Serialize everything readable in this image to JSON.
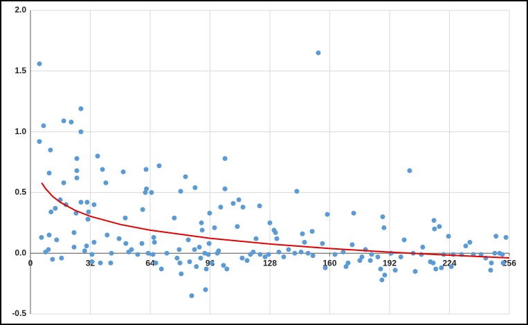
{
  "chart_data": {
    "type": "scatter",
    "xlim": [
      0,
      256
    ],
    "xticks": [
      0,
      32,
      64,
      96,
      128,
      160,
      192,
      224,
      256
    ],
    "ylim": [
      -0.5,
      2
    ],
    "yticks": [
      {
        "value": -0.5,
        "label": "-0.5"
      },
      {
        "value": 0,
        "label": "0.0"
      },
      {
        "value": 0.5,
        "label": "0.5"
      },
      {
        "value": 1,
        "label": "1.0"
      },
      {
        "value": 1.5,
        "label": "1.5"
      },
      {
        "value": 2,
        "label": "2.0"
      }
    ],
    "grid": true,
    "series": [
      {
        "color": "#5b9bd5",
        "x": [
          4.8,
          4.8,
          7,
          5.9,
          8.1,
          9.6,
          10,
          10.7,
          11,
          10,
          11.8,
          13.3,
          14,
          15.9,
          16.6,
          17.8,
          17.8,
          19,
          21.8,
          23.3,
          23.3,
          24.8,
          24.8,
          24.8,
          24.4,
          27,
          27,
          27,
          29,
          30,
          30.3,
          30.7,
          31,
          32.9,
          32.9,
          34,
          34,
          35.9,
          37.4,
          38.5,
          40.3,
          41,
          42.9,
          43.3,
          47.4,
          49.6,
          50.7,
          51,
          52.5,
          54,
          57.3,
          59.6,
          60,
          61.4,
          62,
          61.8,
          62.9,
          64.7,
          65.5,
          65.9,
          66.3,
          67,
          68.8,
          70,
          72.9,
          76.9,
          78.4,
          79.5,
          79.9,
          80.6,
          80.3,
          82.9,
          84.4,
          85.1,
          86.2,
          87.7,
          88,
          88.7,
          90.3,
          91,
          91.4,
          91.8,
          93.2,
          94,
          93.6,
          95.1,
          95.5,
          95.8,
          96.9,
          98.4,
          99.9,
          100.6,
          101.7,
          103.2,
          104,
          104,
          105,
          108.4,
          110.6,
          111.4,
          113.6,
          113.2,
          115.8,
          117.6,
          119.1,
          120.6,
          122.5,
          122.8,
          125.4,
          127.3,
          128,
          130.2,
          131,
          131.7,
          132.8,
          135.4,
          138,
          141.3,
          142.4,
          144.7,
          145.4,
          146.5,
          148.4,
          150.6,
          151,
          153.9,
          156.1,
          157.6,
          158.7,
          162.8,
          167.2,
          168.7,
          169.8,
          172,
          172.8,
          176.1,
          177.2,
          179.1,
          181.7,
          182.4,
          185.7,
          187.2,
          187.9,
          188.3,
          189,
          189.4,
          192.8,
          195,
          198,
          199.8,
          202.7,
          204.6,
          205.7,
          209,
          209.7,
          213.8,
          215.3,
          215.7,
          216,
          216.7,
          218.6,
          219.7,
          220.9,
          223.5,
          225,
          226,
          230.5,
          232.7,
          234.9,
          236.8,
          240.9,
          243.4,
          246.4,
          246,
          248.2,
          248.9,
          250.8,
          252.7,
          254.2,
          252.3
        ],
        "values": [
          1.56,
          0.92,
          1.05,
          0.13,
          0.01,
          0.03,
          0.66,
          0.85,
          0.34,
          0.15,
          -0.05,
          0.37,
          0.11,
          0.44,
          -0.04,
          1.09,
          0.58,
          0.4,
          1.08,
          0.17,
          0.05,
          0.78,
          0.68,
          0.62,
          0.33,
          1.19,
          1.0,
          0.42,
          0.02,
          0.06,
          0.42,
          0.28,
          0.34,
          -0.01,
          -0.07,
          0.4,
          0.09,
          0.8,
          -0.08,
          0.69,
          0.58,
          0.15,
          -0.08,
          0,
          0.12,
          0.67,
          0.29,
          0.08,
          0.01,
          0.03,
          -0.01,
          0.08,
          0.36,
          0.5,
          0.53,
          0.69,
          0,
          0.5,
          -0.01,
          0.13,
          0.09,
          -0.08,
          0.72,
          -0.13,
          0,
          0.29,
          -0.04,
          0.03,
          -0.08,
          -0.17,
          0.51,
          0.63,
          0.11,
          -0.07,
          -0.35,
          0.03,
          0.54,
          -0.11,
          0.05,
          -0.04,
          0.25,
          0.19,
          0,
          -0.13,
          -0.3,
          -0.01,
          0.08,
          0.33,
          -0.08,
          0.21,
          0,
          0.02,
          0.38,
          -0.1,
          0.78,
          0.53,
          -0.13,
          0.41,
          0.22,
          0.44,
          0.38,
          -0.04,
          -0.06,
          -0.01,
          0.01,
          0.12,
          0.39,
          -0.01,
          -0.03,
          -0.01,
          0.25,
          0.19,
          0.17,
          0.12,
          0.01,
          -0.03,
          0.03,
          0,
          0.51,
          0.01,
          0.16,
          0.09,
          0,
          0.18,
          -0.02,
          1.65,
          0.08,
          -0.12,
          0.32,
          -0.01,
          0.01,
          -0.11,
          -0.08,
          0.07,
          0.33,
          -0.06,
          -0.03,
          0.03,
          -0.06,
          -0.01,
          -0.03,
          -0.13,
          -0.22,
          0.3,
          0.21,
          -0.18,
          0,
          -0.14,
          -0.03,
          0.11,
          0.68,
          0,
          -0.15,
          -0.01,
          0.05,
          -0.07,
          -0.08,
          0.27,
          0.2,
          -0.13,
          0.22,
          -0.12,
          -0.01,
          0.14,
          -0.11,
          -0.01,
          -0.01,
          0.06,
          0.09,
          -0.01,
          -0.01,
          -0.04,
          -0.08,
          -0.14,
          0,
          0.14,
          0,
          -0.08,
          0.13,
          -0.01
        ]
      }
    ],
    "trendline": {
      "color": "#e00000",
      "x": [
        6,
        8,
        12,
        16,
        24,
        32,
        48,
        64,
        96,
        128,
        160,
        192,
        224,
        256
      ],
      "values": [
        0.58,
        0.533,
        0.466,
        0.419,
        0.352,
        0.304,
        0.237,
        0.19,
        0.123,
        0.076,
        0.039,
        0.009,
        -0.016,
        -0.039
      ]
    }
  }
}
